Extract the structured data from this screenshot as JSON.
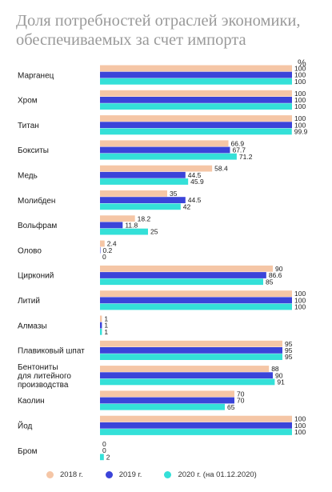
{
  "chart_data": {
    "type": "bar",
    "orientation": "horizontal",
    "title": "Доля потребностей отраслей экономики, обеспечиваемых за счет импорта",
    "unit": "%",
    "xlim": [
      0,
      100
    ],
    "grid": false,
    "legend_position": "bottom",
    "categories": [
      "Марганец",
      "Хром",
      "Титан",
      "Бокситы",
      "Медь",
      "Молибден",
      "Вольфрам",
      "Олово",
      "Цирконий",
      "Литий",
      "Алмазы",
      "Плавиковый шпат",
      "Бентониты для литейного производства",
      "Каолин",
      "Йод",
      "Бром"
    ],
    "category_lines": [
      [
        "Марганец"
      ],
      [
        "Хром"
      ],
      [
        "Титан"
      ],
      [
        "Бокситы"
      ],
      [
        "Медь"
      ],
      [
        "Молибден"
      ],
      [
        "Вольфрам"
      ],
      [
        "Олово"
      ],
      [
        "Цирконий"
      ],
      [
        "Литий"
      ],
      [
        "Алмазы"
      ],
      [
        "Плавиковый шпат"
      ],
      [
        "Бентониты",
        "для литейного",
        "производства"
      ],
      [
        "Каолин"
      ],
      [
        "Йод"
      ],
      [
        "Бром"
      ]
    ],
    "series": [
      {
        "name": "2018 г.",
        "color": "#f5c6a6",
        "values": [
          100,
          100,
          100,
          66.9,
          58.4,
          35,
          18.2,
          2.4,
          90,
          100,
          1,
          95,
          88,
          70,
          100,
          0
        ],
        "labels": [
          "100",
          "100",
          "100",
          "66.9",
          "58.4",
          "35",
          "18.2",
          "2.4",
          "90",
          "100",
          "1",
          "95",
          "88",
          "70",
          "100",
          "0"
        ]
      },
      {
        "name": "2019 г.",
        "color": "#3b44d9",
        "values": [
          100,
          100,
          100,
          67.7,
          44.5,
          44.5,
          11.8,
          0.2,
          86.6,
          100,
          1,
          95,
          90,
          70,
          100,
          0
        ],
        "labels": [
          "100",
          "100",
          "100",
          "67.7",
          "44.5",
          "44.5",
          "11.8",
          "0.2",
          "86.6",
          "100",
          "1",
          "95",
          "90",
          "70",
          "100",
          "0"
        ]
      },
      {
        "name": "2020 г. (на 01.12.2020)",
        "color": "#34e0d8",
        "values": [
          100,
          100,
          99.9,
          71.2,
          45.9,
          42,
          25,
          0,
          85,
          100,
          1,
          95,
          91,
          65,
          100,
          2
        ],
        "labels": [
          "100",
          "100",
          "99.9",
          "71.2",
          "45.9",
          "42",
          "25",
          "0",
          "85",
          "100",
          "1",
          "95",
          "91",
          "65",
          "100",
          "2"
        ]
      }
    ]
  }
}
